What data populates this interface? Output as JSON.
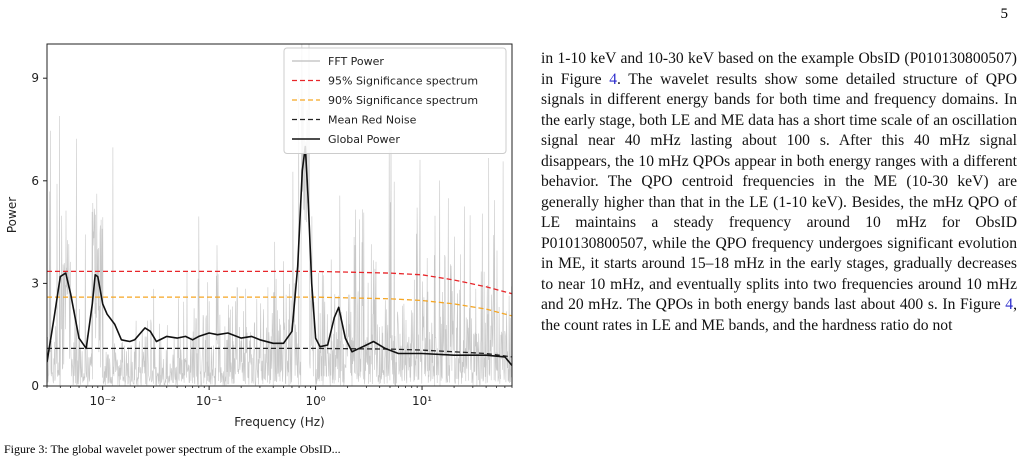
{
  "page_number": "5",
  "chart_data": {
    "type": "line",
    "xscale": "log",
    "xlim": [
      0.003,
      70
    ],
    "ylim": [
      0,
      10
    ],
    "xlabel": "Frequency (Hz)",
    "ylabel": "Power",
    "xticks": [
      0.01,
      0.1,
      1,
      10
    ],
    "xtick_labels": [
      "10⁻²",
      "10⁻¹",
      "10⁰",
      "10¹"
    ],
    "yticks": [
      0,
      3,
      6,
      9
    ],
    "ytick_labels": [
      "0",
      "3",
      "6",
      "9"
    ],
    "grid": false,
    "legend_position": "top-right",
    "series": [
      {
        "name": "FFT Power",
        "color": "#c8c8c8",
        "style": "solid"
      },
      {
        "name": "95% Significance spectrum",
        "color": "#e8262a",
        "style": "dashed",
        "x": [
          0.003,
          0.1,
          1,
          5,
          10,
          20,
          40,
          70
        ],
        "y": [
          3.35,
          3.35,
          3.35,
          3.3,
          3.25,
          3.1,
          2.9,
          2.7
        ]
      },
      {
        "name": "90% Significance spectrum",
        "color": "#f5a623",
        "style": "dashed",
        "x": [
          0.003,
          0.1,
          1,
          5,
          10,
          20,
          40,
          70
        ],
        "y": [
          2.6,
          2.6,
          2.6,
          2.55,
          2.5,
          2.4,
          2.25,
          2.05
        ]
      },
      {
        "name": "Mean Red Noise",
        "color": "#222222",
        "style": "dashed",
        "x": [
          0.003,
          0.1,
          1,
          5,
          10,
          20,
          40,
          70
        ],
        "y": [
          1.1,
          1.1,
          1.1,
          1.08,
          1.05,
          1.0,
          0.95,
          0.85
        ]
      },
      {
        "name": "Global Power",
        "color": "#111111",
        "style": "solid",
        "x": [
          0.003,
          0.0035,
          0.004,
          0.0045,
          0.005,
          0.006,
          0.007,
          0.008,
          0.0085,
          0.009,
          0.01,
          0.011,
          0.013,
          0.015,
          0.018,
          0.02,
          0.025,
          0.028,
          0.032,
          0.04,
          0.05,
          0.06,
          0.07,
          0.08,
          0.1,
          0.12,
          0.15,
          0.2,
          0.25,
          0.3,
          0.4,
          0.5,
          0.6,
          0.68,
          0.75,
          0.8,
          0.85,
          0.92,
          1.0,
          1.1,
          1.3,
          1.5,
          1.65,
          1.9,
          2.2,
          3.0,
          3.5,
          4.5,
          6,
          10,
          20,
          40,
          60,
          70
        ],
        "y": [
          0.7,
          2.0,
          3.2,
          3.3,
          2.7,
          1.4,
          1.1,
          2.4,
          3.25,
          3.2,
          2.4,
          2.1,
          1.8,
          1.35,
          1.3,
          1.35,
          1.7,
          1.6,
          1.3,
          1.45,
          1.4,
          1.45,
          1.35,
          1.45,
          1.55,
          1.5,
          1.55,
          1.4,
          1.45,
          1.35,
          1.25,
          1.25,
          1.6,
          3.5,
          6.3,
          7.0,
          5.5,
          3.0,
          1.4,
          1.15,
          1.2,
          2.0,
          2.3,
          1.4,
          1.0,
          1.2,
          1.3,
          1.1,
          0.95,
          0.95,
          0.9,
          0.9,
          0.85,
          0.6
        ]
      }
    ]
  },
  "caption_fragment": "Figure 3: The global wavelet power spectrum of the example ObsID...",
  "body_paragraph": {
    "before_ref": "in 1-10 keV and 10-30 keV based on the example ObsID (P010130800507) in Figure ",
    "ref1": "4",
    "middle": ". The wavelet results show some detailed structure of QPO signals in different energy bands for both time and frequency domains. In the early stage, both LE and ME data has a short time scale of an oscillation signal near 40 mHz lasting about 100 s. After this 40 mHz signal disappears, the 10 mHz QPOs appear in both energy ranges with a different behavior. The QPO centroid frequencies in the ME (10-30 keV) are generally higher than that in the LE (1-10 keV). Besides, the mHz QPO of LE maintains a steady frequency around 10 mHz for ObsID P010130800507, while the QPO frequency undergoes significant evolution in ME, it starts around 15–18 mHz in the early stages, gradually decreases to near 10 mHz, and eventually splits into two frequencies around 10 mHz and 20 mHz. The QPOs in both energy bands last about 400 s. In Figure ",
    "ref2": "4",
    "after_ref": ", the count rates in LE and ME bands, and the hardness ratio do not"
  }
}
